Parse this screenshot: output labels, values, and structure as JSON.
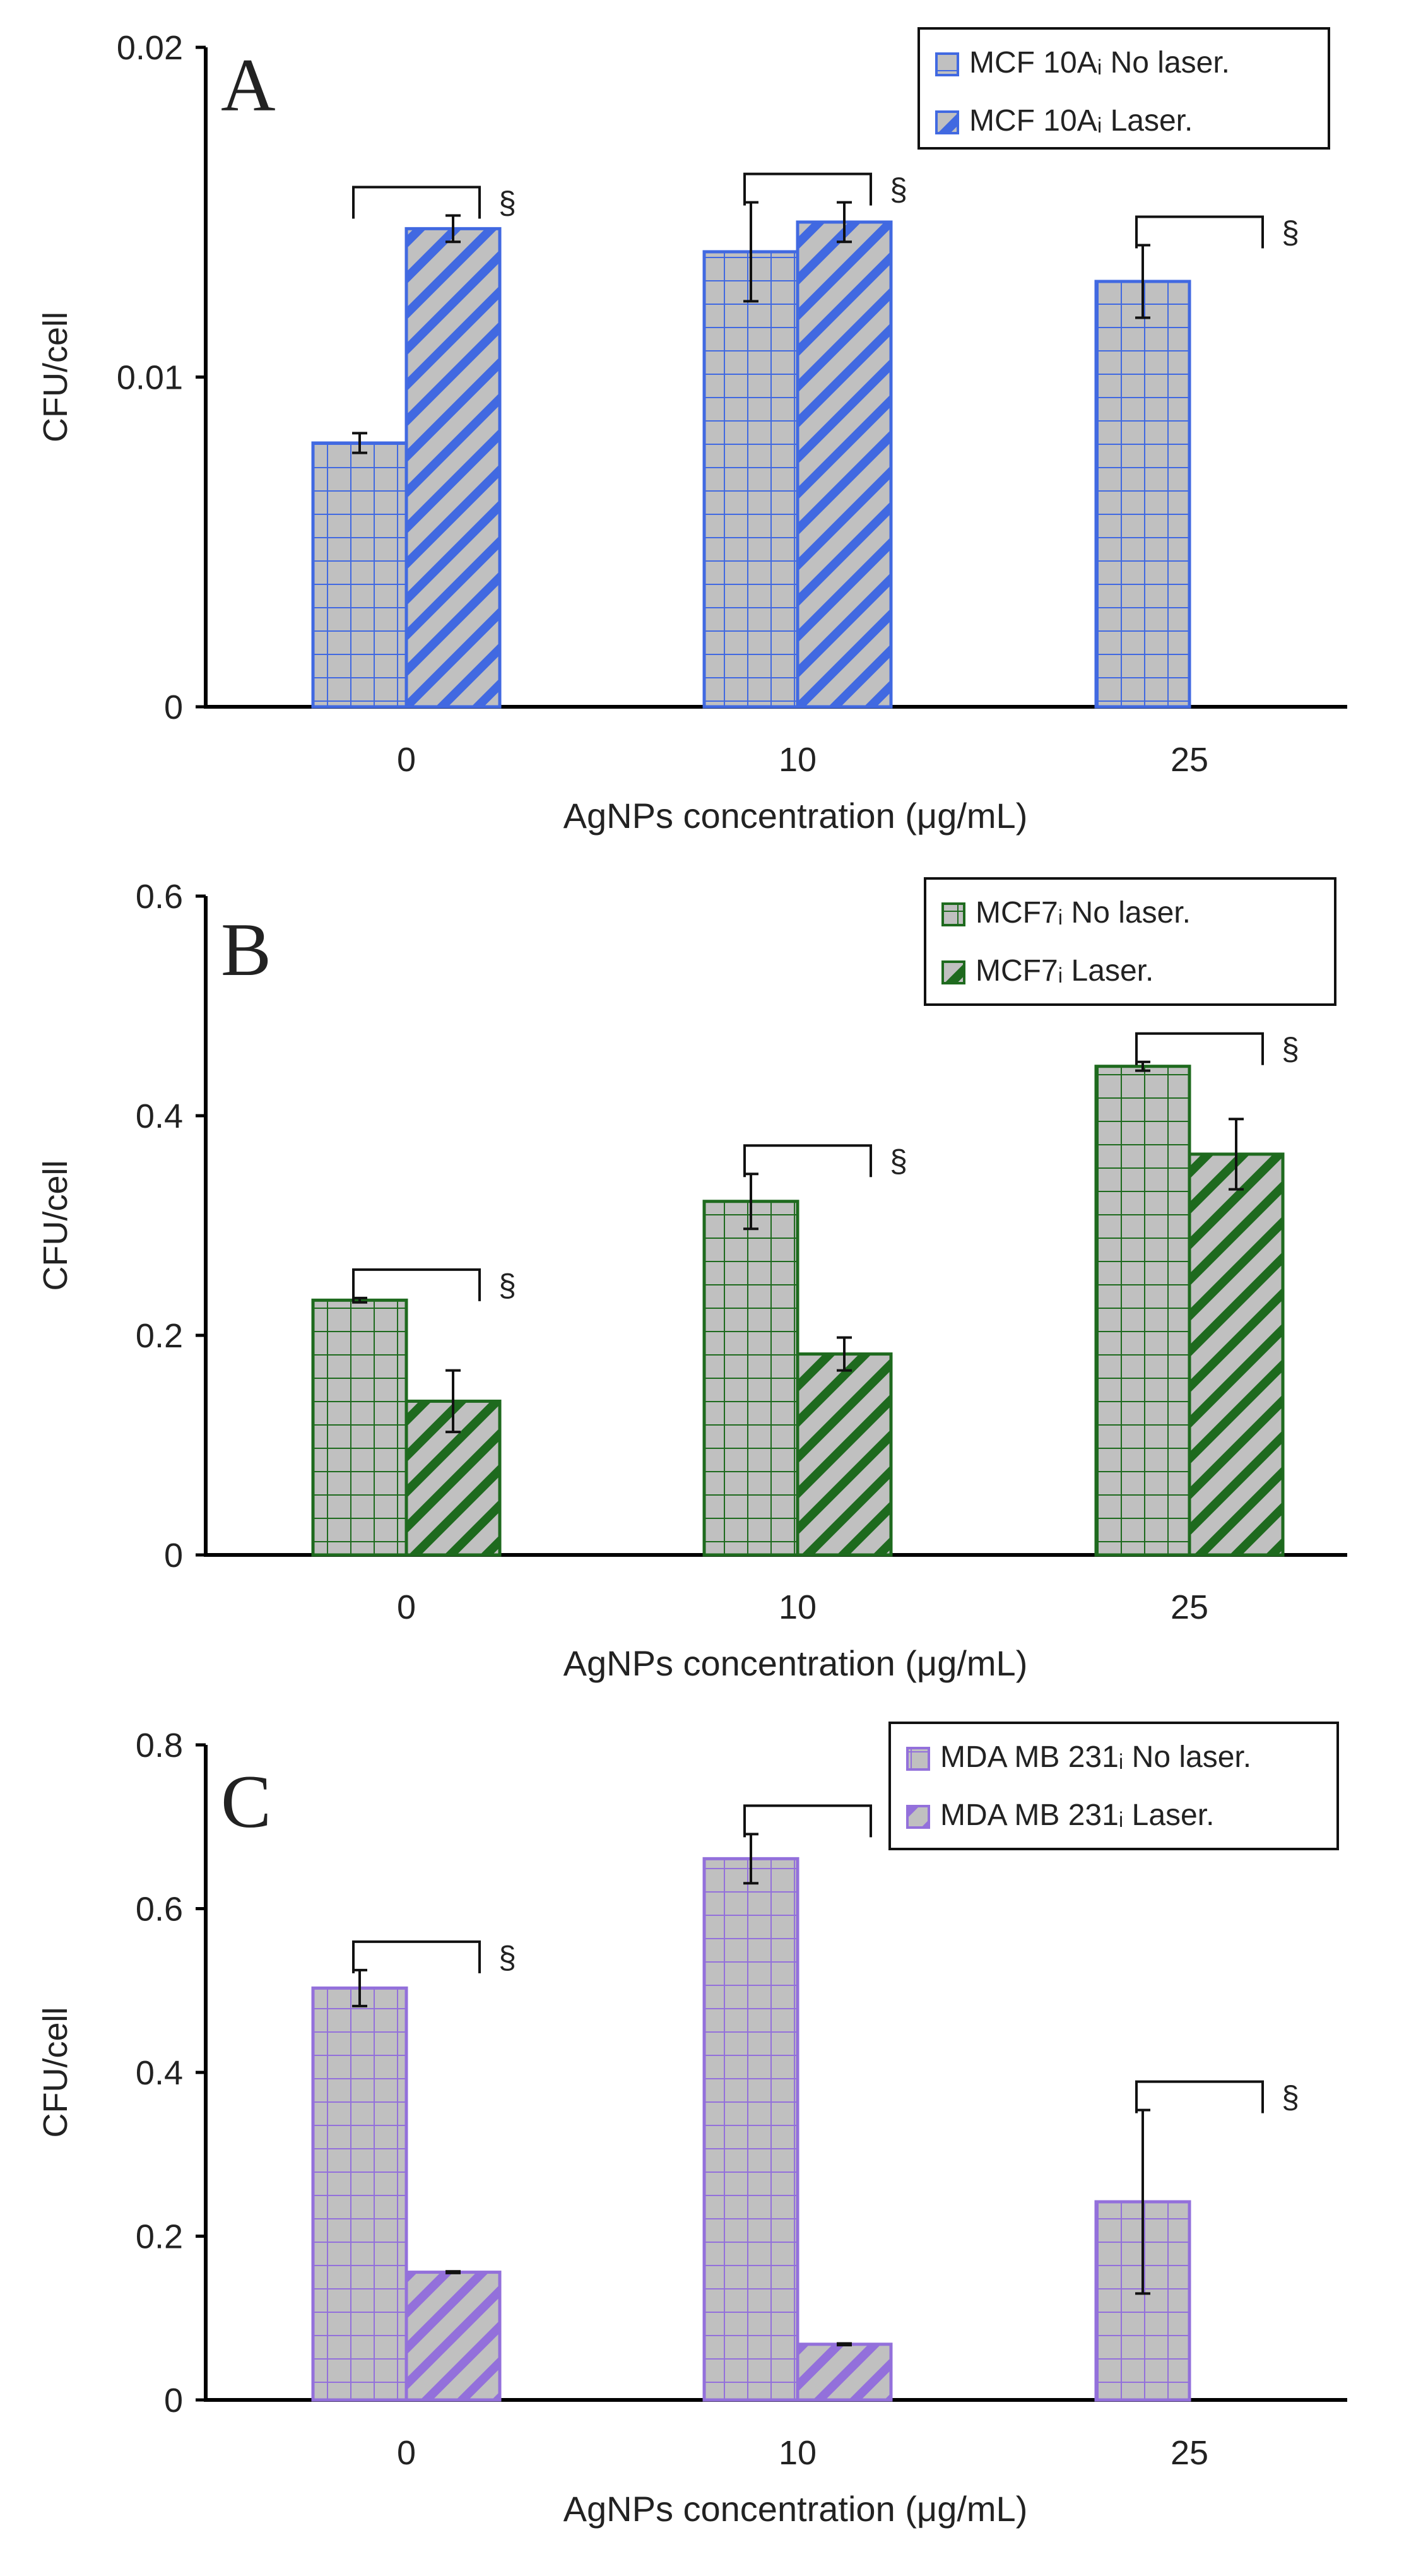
{
  "figure": {
    "background": "#ffffff",
    "axis_color": "#000000",
    "bar_fill": "#c0c0c0"
  },
  "chart_data": [
    {
      "type": "bar",
      "panel": "A",
      "title": "",
      "xlabel": "AgNPs concentration (μg/mL)",
      "ylabel": "CFU/cell",
      "categories": [
        "0",
        "10",
        "25"
      ],
      "ylim": [
        0,
        0.02
      ],
      "yticks": [
        0,
        0.01,
        0.02
      ],
      "ytick_labels": [
        "0",
        "0.01",
        "0.02"
      ],
      "grid": false,
      "legend_position": "top-right",
      "accent": "#4169e1",
      "significance_marker": "§",
      "series": [
        {
          "name": "MCF 10Aᵢ No laser.",
          "pattern": "grid",
          "values": [
            0.008,
            0.0138,
            0.0129
          ],
          "errors": [
            0.0003,
            0.0015,
            0.0011
          ]
        },
        {
          "name": "MCF 10Aᵢ Laser.",
          "pattern": "diagonal",
          "values": [
            0.0145,
            0.0147,
            null
          ],
          "errors": [
            0.0004,
            0.0006,
            null
          ]
        }
      ]
    },
    {
      "type": "bar",
      "panel": "B",
      "title": "",
      "xlabel": "AgNPs concentration (μg/mL)",
      "ylabel": "CFU/cell",
      "categories": [
        "0",
        "10",
        "25"
      ],
      "ylim": [
        0,
        0.6
      ],
      "yticks": [
        0,
        0.2,
        0.4,
        0.6
      ],
      "ytick_labels": [
        "0",
        "0.2",
        "0.4",
        "0.6"
      ],
      "grid": false,
      "legend_position": "top-right",
      "accent": "#1e6a1e",
      "significance_marker": "§",
      "series": [
        {
          "name": "MCF7ᵢ No laser.",
          "pattern": "grid",
          "values": [
            0.232,
            0.322,
            0.445
          ],
          "errors": [
            0.002,
            0.025,
            0.004
          ]
        },
        {
          "name": "MCF7ᵢ Laser.",
          "pattern": "diagonal",
          "values": [
            0.14,
            0.183,
            0.365
          ],
          "errors": [
            0.028,
            0.015,
            0.032
          ]
        }
      ]
    },
    {
      "type": "bar",
      "panel": "C",
      "title": "",
      "xlabel": "AgNPs concentration (μg/mL)",
      "ylabel": "CFU/cell",
      "categories": [
        "0",
        "10",
        "25"
      ],
      "ylim": [
        0,
        0.8
      ],
      "yticks": [
        0,
        0.2,
        0.4,
        0.6,
        0.8
      ],
      "ytick_labels": [
        "0",
        "0.2",
        "0.4",
        "0.6",
        "0.8"
      ],
      "grid": false,
      "legend_position": "top-right",
      "accent": "#9370db",
      "significance_marker": "§",
      "series": [
        {
          "name": "MDA MB 231ᵢ No laser.",
          "pattern": "grid",
          "values": [
            0.503,
            0.661,
            0.242
          ],
          "errors": [
            0.022,
            0.03,
            0.112
          ]
        },
        {
          "name": "MDA MB 231ᵢ Laser.",
          "pattern": "diagonal",
          "values": [
            0.156,
            0.068,
            null
          ],
          "errors": [
            0.001,
            0.001,
            null
          ]
        }
      ]
    }
  ]
}
